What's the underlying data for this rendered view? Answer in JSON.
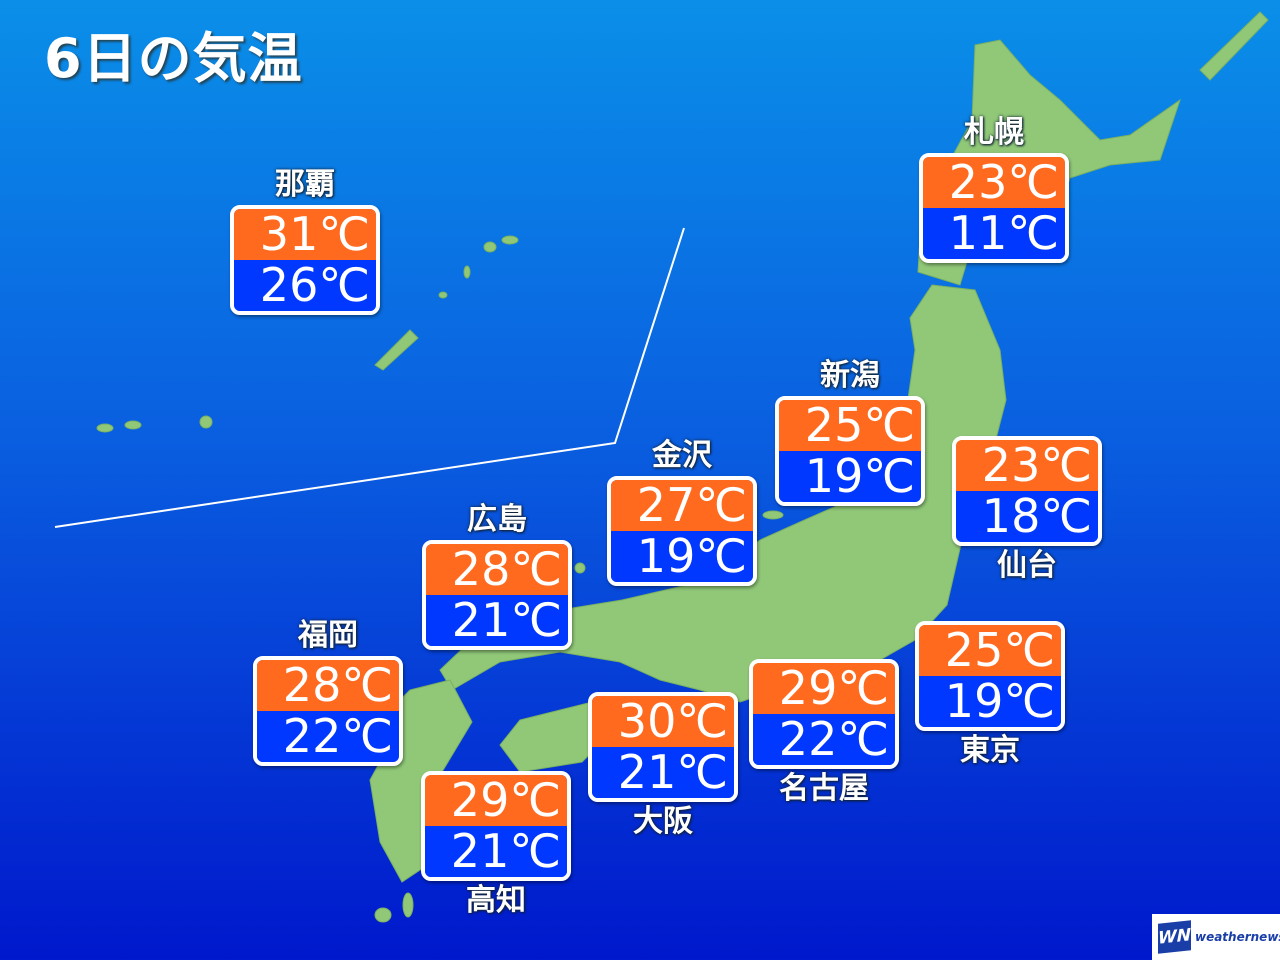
{
  "title": "6日の気温",
  "colors": {
    "high": "#ff6a1f",
    "low": "#0038ff",
    "land": "#90c878"
  },
  "cities": [
    {
      "name": "那覇",
      "high": "31℃",
      "low": "26℃"
    },
    {
      "name": "札幌",
      "high": "23℃",
      "low": "11℃"
    },
    {
      "name": "新潟",
      "high": "25℃",
      "low": "19℃"
    },
    {
      "name": "金沢",
      "high": "27℃",
      "low": "19℃"
    },
    {
      "name": "仙台",
      "high": "23℃",
      "low": "18℃"
    },
    {
      "name": "広島",
      "high": "28℃",
      "low": "21℃"
    },
    {
      "name": "福岡",
      "high": "28℃",
      "low": "22℃"
    },
    {
      "name": "東京",
      "high": "25℃",
      "low": "19℃"
    },
    {
      "name": "名古屋",
      "high": "29℃",
      "low": "22℃"
    },
    {
      "name": "大阪",
      "high": "30℃",
      "low": "21℃"
    },
    {
      "name": "高知",
      "high": "29℃",
      "low": "21℃"
    }
  ],
  "logo": {
    "mark": "WN",
    "text": "weathernews"
  }
}
